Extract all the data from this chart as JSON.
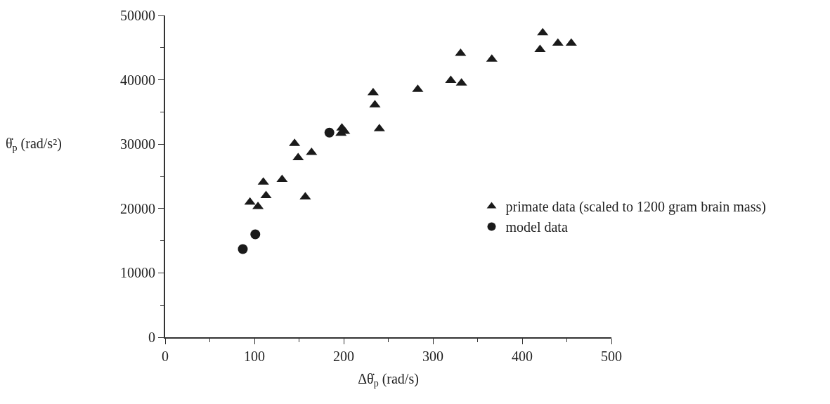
{
  "chart_data": {
    "type": "scatter",
    "xlabel": "Δθ̇$_{p}$ (rad/s)",
    "ylabel": "θ̇$_{p}$ (rad/s²)",
    "xlim": [
      0,
      500
    ],
    "xticks": [
      0,
      100,
      200,
      300,
      400,
      500
    ],
    "ylim": [
      0,
      50000
    ],
    "yticks": [
      0,
      10000,
      20000,
      30000,
      40000,
      50000
    ],
    "legend": "bottom right",
    "series": [
      {
        "name": "primate data (scaled to 1200 gram brain mass)",
        "color": "#1a1a1a",
        "marker": "triangle",
        "x": [
          95,
          104,
          110,
          113,
          131,
          145,
          149,
          164,
          157,
          198,
          201,
          197,
          233,
          235,
          240,
          283,
          320,
          332,
          331,
          366,
          423,
          420,
          440,
          455
        ],
        "values": [
          21000,
          20300,
          24100,
          22000,
          24500,
          30100,
          27900,
          28700,
          21800,
          32500,
          32000,
          31700,
          38000,
          36100,
          32400,
          38500,
          39900,
          39500,
          44100,
          43200,
          47300,
          44700,
          45700,
          45700
        ]
      },
      {
        "name": "model data",
        "color": "#1a1a1a",
        "marker": "circle",
        "x": [
          87,
          101,
          184
        ],
        "values": [
          13700,
          16000,
          31800
        ]
      }
    ]
  }
}
